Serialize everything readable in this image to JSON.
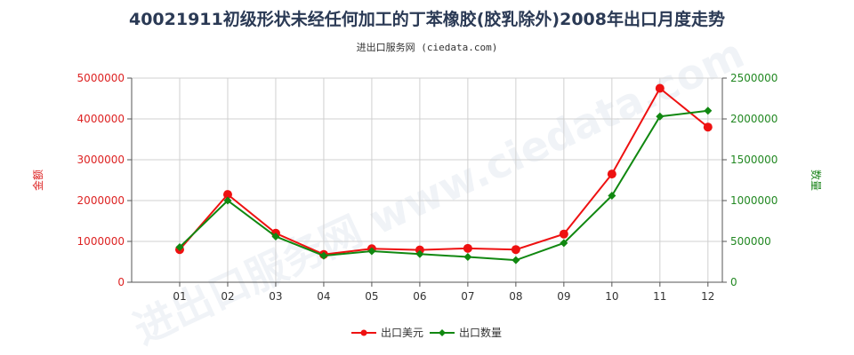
{
  "chart_data": {
    "type": "line",
    "title": "40021911初级形状未经任何加工的丁苯橡胶(胶乳除外)2008年出口月度走势",
    "subtitle": "进出口服务网 (ciedata.com)",
    "watermark": "进出口服务网 www.ciedata.com",
    "categories": [
      "01",
      "02",
      "03",
      "04",
      "05",
      "06",
      "07",
      "08",
      "09",
      "10",
      "11",
      "12"
    ],
    "left_axis": {
      "label": "金额",
      "ylim": [
        0,
        5000000
      ],
      "ticks": [
        0,
        1000000,
        2000000,
        3000000,
        4000000,
        5000000
      ],
      "color": "#dd2222"
    },
    "right_axis": {
      "label": "数量",
      "ylim": [
        0,
        2500000
      ],
      "ticks": [
        0,
        500000,
        1000000,
        1500000,
        2000000,
        2500000
      ],
      "color": "#228822"
    },
    "series": [
      {
        "name": "出口美元",
        "axis": "left",
        "color": "#ee1111",
        "values": [
          800000,
          2150000,
          1200000,
          680000,
          820000,
          790000,
          830000,
          800000,
          1180000,
          2650000,
          4750000,
          3800000
        ]
      },
      {
        "name": "出口数量",
        "axis": "right",
        "color": "#118811",
        "values": [
          430000,
          1000000,
          560000,
          325000,
          380000,
          345000,
          310000,
          270000,
          480000,
          1060000,
          2030000,
          2100000
        ]
      }
    ],
    "grid": true,
    "legend_position": "bottom-center"
  }
}
